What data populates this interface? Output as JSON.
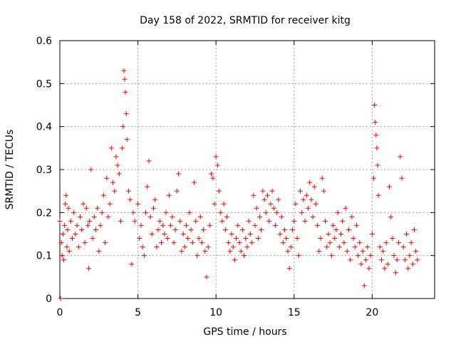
{
  "chart_data": {
    "type": "scatter",
    "title": "Day 158 of 2022, SRMTID for receiver kitg",
    "xlabel": "GPS time / hours",
    "ylabel": "SRMTID / TECUs",
    "xlim": [
      0,
      24
    ],
    "ylim": [
      0,
      0.6
    ],
    "xticks": [
      0,
      5,
      10,
      15,
      20
    ],
    "yticks": [
      0,
      0.1,
      0.2,
      0.3,
      0.4,
      0.5,
      0.6
    ],
    "xtick_labels": [
      "0",
      "5",
      "10",
      "15",
      "20"
    ],
    "ytick_labels": [
      "0",
      "0.1",
      "0.2",
      "0.3",
      "0.4",
      "0.5",
      "0.6"
    ],
    "grid": true,
    "marker": "+",
    "marker_color": "#ff0000",
    "series": [
      {
        "name": "SRMTID",
        "points": [
          [
            0.0,
            0.18
          ],
          [
            0.05,
            0.0
          ],
          [
            0.1,
            0.13
          ],
          [
            0.15,
            0.1
          ],
          [
            0.2,
            0.15
          ],
          [
            0.25,
            0.09
          ],
          [
            0.3,
            0.17
          ],
          [
            0.35,
            0.22
          ],
          [
            0.4,
            0.24
          ],
          [
            0.45,
            0.12
          ],
          [
            0.5,
            0.16
          ],
          [
            0.55,
            0.21
          ],
          [
            0.6,
            0.11
          ],
          [
            0.7,
            0.18
          ],
          [
            0.8,
            0.14
          ],
          [
            0.9,
            0.2
          ],
          [
            1.0,
            0.15
          ],
          [
            1.1,
            0.17
          ],
          [
            1.2,
            0.12
          ],
          [
            1.3,
            0.19
          ],
          [
            1.4,
            0.16
          ],
          [
            1.5,
            0.22
          ],
          [
            1.6,
            0.13
          ],
          [
            1.7,
            0.21
          ],
          [
            1.8,
            0.17
          ],
          [
            1.85,
            0.07
          ],
          [
            1.9,
            0.18
          ],
          [
            2.0,
            0.3
          ],
          [
            2.1,
            0.14
          ],
          [
            2.2,
            0.19
          ],
          [
            2.3,
            0.16
          ],
          [
            2.4,
            0.21
          ],
          [
            2.5,
            0.11
          ],
          [
            2.6,
            0.17
          ],
          [
            2.7,
            0.2
          ],
          [
            2.8,
            0.24
          ],
          [
            2.9,
            0.13
          ],
          [
            3.0,
            0.28
          ],
          [
            3.1,
            0.19
          ],
          [
            3.2,
            0.22
          ],
          [
            3.3,
            0.35
          ],
          [
            3.4,
            0.27
          ],
          [
            3.5,
            0.25
          ],
          [
            3.6,
            0.33
          ],
          [
            3.7,
            0.31
          ],
          [
            3.8,
            0.29
          ],
          [
            3.9,
            0.18
          ],
          [
            4.0,
            0.35
          ],
          [
            4.05,
            0.4
          ],
          [
            4.1,
            0.53
          ],
          [
            4.15,
            0.51
          ],
          [
            4.2,
            0.48
          ],
          [
            4.25,
            0.43
          ],
          [
            4.3,
            0.37
          ],
          [
            4.4,
            0.25
          ],
          [
            4.5,
            0.23
          ],
          [
            4.6,
            0.08
          ],
          [
            4.7,
            0.2
          ],
          [
            4.8,
            0.18
          ],
          [
            5.0,
            0.22
          ],
          [
            5.1,
            0.14
          ],
          [
            5.2,
            0.17
          ],
          [
            5.3,
            0.12
          ],
          [
            5.4,
            0.1
          ],
          [
            5.5,
            0.2
          ],
          [
            5.6,
            0.26
          ],
          [
            5.7,
            0.32
          ],
          [
            5.8,
            0.19
          ],
          [
            5.9,
            0.15
          ],
          [
            6.0,
            0.21
          ],
          [
            6.1,
            0.23
          ],
          [
            6.2,
            0.12
          ],
          [
            6.3,
            0.16
          ],
          [
            6.4,
            0.18
          ],
          [
            6.5,
            0.13
          ],
          [
            6.6,
            0.17
          ],
          [
            6.7,
            0.15
          ],
          [
            6.8,
            0.2
          ],
          [
            6.9,
            0.14
          ],
          [
            7.0,
            0.24
          ],
          [
            7.1,
            0.17
          ],
          [
            7.2,
            0.19
          ],
          [
            7.3,
            0.13
          ],
          [
            7.4,
            0.16
          ],
          [
            7.5,
            0.25
          ],
          [
            7.6,
            0.29
          ],
          [
            7.7,
            0.18
          ],
          [
            7.8,
            0.11
          ],
          [
            7.9,
            0.15
          ],
          [
            8.0,
            0.12
          ],
          [
            8.1,
            0.17
          ],
          [
            8.2,
            0.14
          ],
          [
            8.3,
            0.2
          ],
          [
            8.4,
            0.16
          ],
          [
            8.5,
            0.13
          ],
          [
            8.6,
            0.27
          ],
          [
            8.7,
            0.18
          ],
          [
            8.8,
            0.1
          ],
          [
            8.9,
            0.14
          ],
          [
            9.0,
            0.19
          ],
          [
            9.1,
            0.13
          ],
          [
            9.2,
            0.16
          ],
          [
            9.3,
            0.11
          ],
          [
            9.4,
            0.05
          ],
          [
            9.5,
            0.12
          ],
          [
            9.6,
            0.17
          ],
          [
            9.7,
            0.29
          ],
          [
            9.8,
            0.28
          ],
          [
            9.9,
            0.22
          ],
          [
            10.0,
            0.33
          ],
          [
            10.1,
            0.31
          ],
          [
            10.2,
            0.25
          ],
          [
            10.3,
            0.2
          ],
          [
            10.4,
            0.18
          ],
          [
            10.5,
            0.22
          ],
          [
            10.6,
            0.16
          ],
          [
            10.7,
            0.19
          ],
          [
            10.8,
            0.13
          ],
          [
            10.9,
            0.11
          ],
          [
            11.0,
            0.15
          ],
          [
            11.1,
            0.12
          ],
          [
            11.2,
            0.09
          ],
          [
            11.3,
            0.14
          ],
          [
            11.4,
            0.17
          ],
          [
            11.5,
            0.13
          ],
          [
            11.6,
            0.11
          ],
          [
            11.7,
            0.16
          ],
          [
            11.8,
            0.1
          ],
          [
            11.9,
            0.14
          ],
          [
            12.0,
            0.12
          ],
          [
            12.1,
            0.18
          ],
          [
            12.2,
            0.15
          ],
          [
            12.3,
            0.13
          ],
          [
            12.4,
            0.24
          ],
          [
            12.5,
            0.17
          ],
          [
            12.6,
            0.21
          ],
          [
            12.7,
            0.14
          ],
          [
            12.8,
            0.19
          ],
          [
            12.9,
            0.16
          ],
          [
            13.0,
            0.25
          ],
          [
            13.1,
            0.23
          ],
          [
            13.2,
            0.2
          ],
          [
            13.3,
            0.24
          ],
          [
            13.4,
            0.18
          ],
          [
            13.5,
            0.22
          ],
          [
            13.6,
            0.25
          ],
          [
            13.7,
            0.21
          ],
          [
            13.8,
            0.17
          ],
          [
            13.9,
            0.2
          ],
          [
            14.0,
            0.23
          ],
          [
            14.1,
            0.15
          ],
          [
            14.2,
            0.19
          ],
          [
            14.3,
            0.13
          ],
          [
            14.4,
            0.16
          ],
          [
            14.5,
            0.14
          ],
          [
            14.6,
            0.11
          ],
          [
            14.7,
            0.07
          ],
          [
            14.8,
            0.12
          ],
          [
            14.9,
            0.16
          ],
          [
            15.0,
            0.18
          ],
          [
            15.1,
            0.22
          ],
          [
            15.2,
            0.14
          ],
          [
            15.3,
            0.1
          ],
          [
            15.4,
            0.25
          ],
          [
            15.5,
            0.2
          ],
          [
            15.6,
            0.23
          ],
          [
            15.7,
            0.18
          ],
          [
            15.8,
            0.24
          ],
          [
            15.9,
            0.21
          ],
          [
            16.0,
            0.27
          ],
          [
            16.1,
            0.23
          ],
          [
            16.2,
            0.19
          ],
          [
            16.3,
            0.26
          ],
          [
            16.4,
            0.22
          ],
          [
            16.5,
            0.17
          ],
          [
            16.6,
            0.11
          ],
          [
            16.7,
            0.14
          ],
          [
            16.8,
            0.28
          ],
          [
            16.9,
            0.25
          ],
          [
            17.0,
            0.18
          ],
          [
            17.1,
            0.12
          ],
          [
            17.2,
            0.15
          ],
          [
            17.3,
            0.13
          ],
          [
            17.4,
            0.1
          ],
          [
            17.5,
            0.17
          ],
          [
            17.6,
            0.14
          ],
          [
            17.7,
            0.16
          ],
          [
            17.8,
            0.2
          ],
          [
            17.9,
            0.12
          ],
          [
            18.0,
            0.15
          ],
          [
            18.1,
            0.18
          ],
          [
            18.2,
            0.13
          ],
          [
            18.3,
            0.21
          ],
          [
            18.4,
            0.11
          ],
          [
            18.5,
            0.16
          ],
          [
            18.6,
            0.09
          ],
          [
            18.7,
            0.19
          ],
          [
            18.8,
            0.14
          ],
          [
            18.9,
            0.12
          ],
          [
            19.0,
            0.17
          ],
          [
            19.1,
            0.1
          ],
          [
            19.2,
            0.13
          ],
          [
            19.3,
            0.08
          ],
          [
            19.4,
            0.11
          ],
          [
            19.5,
            0.03
          ],
          [
            19.6,
            0.09
          ],
          [
            19.7,
            0.12
          ],
          [
            19.8,
            0.07
          ],
          [
            19.9,
            0.1
          ],
          [
            20.0,
            0.15
          ],
          [
            20.1,
            0.28
          ],
          [
            20.15,
            0.45
          ],
          [
            20.2,
            0.41
          ],
          [
            20.25,
            0.38
          ],
          [
            20.3,
            0.35
          ],
          [
            20.35,
            0.31
          ],
          [
            20.4,
            0.24
          ],
          [
            20.5,
            0.12
          ],
          [
            20.6,
            0.09
          ],
          [
            20.7,
            0.11
          ],
          [
            20.8,
            0.07
          ],
          [
            20.9,
            0.13
          ],
          [
            21.0,
            0.08
          ],
          [
            21.1,
            0.26
          ],
          [
            21.2,
            0.19
          ],
          [
            21.3,
            0.14
          ],
          [
            21.4,
            0.1
          ],
          [
            21.5,
            0.06
          ],
          [
            21.6,
            0.09
          ],
          [
            21.7,
            0.13
          ],
          [
            21.8,
            0.33
          ],
          [
            21.9,
            0.28
          ],
          [
            22.0,
            0.12
          ],
          [
            22.1,
            0.09
          ],
          [
            22.2,
            0.15
          ],
          [
            22.3,
            0.07
          ],
          [
            22.4,
            0.1
          ],
          [
            22.5,
            0.13
          ],
          [
            22.6,
            0.08
          ],
          [
            22.7,
            0.16
          ],
          [
            22.8,
            0.11
          ],
          [
            22.9,
            0.09
          ]
        ]
      }
    ]
  }
}
